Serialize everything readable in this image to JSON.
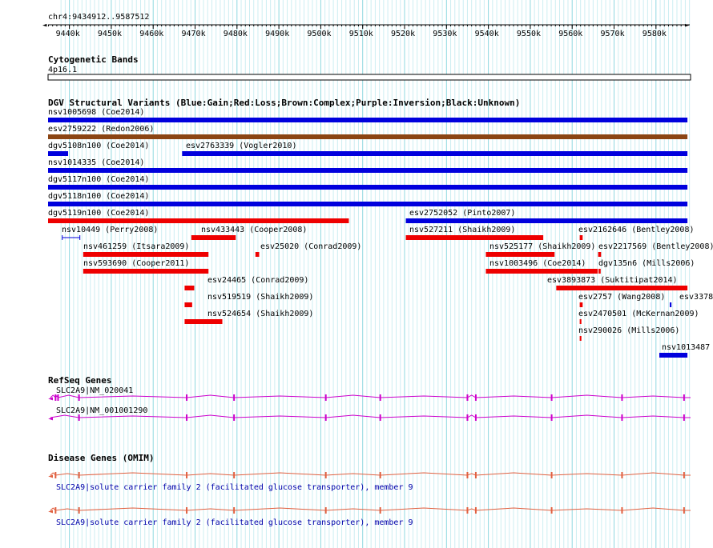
{
  "ruler": {
    "region": "chr4:9434912..9587512",
    "ticks": [
      "9440k",
      "9450k",
      "9460k",
      "9470k",
      "9480k",
      "9490k",
      "9500k",
      "9510k",
      "9520k",
      "9530k",
      "9540k",
      "9550k",
      "9560k",
      "9570k",
      "9580k"
    ],
    "tick_values": [
      9440000,
      9450000,
      9460000,
      9470000,
      9480000,
      9490000,
      9500000,
      9510000,
      9520000,
      9530000,
      9540000,
      9550000,
      9560000,
      9570000,
      9580000
    ]
  },
  "tracks": {
    "cytoband": {
      "title": "Cytogenetic Bands",
      "band": "4p16.1"
    },
    "dgv": {
      "title": "DGV Structural Variants (Blue:Gain;Red:Loss;Brown:Complex;Purple:Inversion;Black:Unknown)",
      "colors": {
        "gain": "#0000dd",
        "loss": "#ee0000",
        "complex": "#8b4513"
      },
      "features": [
        {
          "label": "nsv1005698 (Coe2014)",
          "start": 9434912,
          "end": 9587512,
          "type": "gain"
        },
        {
          "label": "esv2759222 (Redon2006)",
          "start": 9434912,
          "end": 9587512,
          "type": "complex"
        },
        {
          "label": "dgv5108n100 (Coe2014)",
          "start": 9434912,
          "end": 9439700,
          "type": "gain"
        },
        {
          "label": "esv2763339 (Vogler2010)",
          "start": 9466900,
          "end": 9587512,
          "type": "gain"
        },
        {
          "label": "nsv1014335 (Coe2014)",
          "start": 9434912,
          "end": 9587512,
          "type": "gain"
        },
        {
          "label": "dgv5117n100 (Coe2014)",
          "start": 9434912,
          "end": 9587512,
          "type": "gain"
        },
        {
          "label": "dgv5118n100 (Coe2014)",
          "start": 9434912,
          "end": 9587512,
          "type": "gain"
        },
        {
          "label": "dgv5119n100 (Coe2014)",
          "start": 9434912,
          "end": 9506700,
          "type": "loss"
        },
        {
          "label": "esv2752052 (Pinto2007)",
          "start": 9520300,
          "end": 9587512,
          "type": "gain"
        },
        {
          "label": "nsv10449 (Perry2008)",
          "start": 9438300,
          "end": 9442500,
          "type": "gain"
        },
        {
          "label": "nsv433443 (Cooper2008)",
          "start": 9469100,
          "end": 9479700,
          "type": "loss"
        },
        {
          "label": "nsv527211 (Shaikh2009)",
          "start": 9520300,
          "end": 9553100,
          "type": "loss"
        },
        {
          "label": "esv2162646 (Bentley2008)",
          "start": 9561800,
          "end": 9562500,
          "type": "loss"
        },
        {
          "label": "nsv461259 (Itsara2009)",
          "start": 9443300,
          "end": 9473200,
          "type": "loss"
        },
        {
          "label": "esv25020 (Conrad2009)",
          "start": 9484400,
          "end": 9485300,
          "type": "loss"
        },
        {
          "label": "nsv525177 (Shaikh2009)",
          "start": 9539400,
          "end": 9555800,
          "type": "loss"
        },
        {
          "label": "esv2217569 (Bentley2008)",
          "start": 9566200,
          "end": 9566900,
          "type": "loss"
        },
        {
          "label": "nsv593690 (Cooper2011)",
          "start": 9443300,
          "end": 9473200,
          "type": "loss"
        },
        {
          "label": "nsv1003496 (Coe2014)",
          "start": 9539400,
          "end": 9566100,
          "type": "loss"
        },
        {
          "label": "dgv135n6 (Mills2006)",
          "start": 9566300,
          "end": 9566800,
          "type": "loss"
        },
        {
          "label": "esv24465 (Conrad2009)",
          "start": 9467500,
          "end": 9469800,
          "type": "loss"
        },
        {
          "label": "esv3893873 (Suktitipat2014)",
          "start": 9556200,
          "end": 9587512,
          "type": "loss"
        },
        {
          "label": "nsv519519 (Shaikh2009)",
          "start": 9467500,
          "end": 9469300,
          "type": "loss"
        },
        {
          "label": "esv2757 (Wang2008)",
          "start": 9561800,
          "end": 9562500,
          "type": "loss"
        },
        {
          "label": "esv3378",
          "start": 9583300,
          "end": 9583700,
          "type": "gain"
        },
        {
          "label": "nsv524654 (Shaikh2009)",
          "start": 9467500,
          "end": 9476500,
          "type": "loss"
        },
        {
          "label": "esv2470501 (McKernan2009)",
          "start": 9561800,
          "end": 9562200,
          "type": "loss"
        },
        {
          "label": "nsv290026 (Mills2006)",
          "start": 9561800,
          "end": 9562200,
          "type": "loss"
        },
        {
          "label": "nsv1013487",
          "start": 9580800,
          "end": 9587512,
          "type": "gain"
        }
      ]
    },
    "refseq": {
      "title": "RefSeq Genes",
      "color": "#cc00cc",
      "genes": [
        {
          "label": "SLC2A9|NM_020041",
          "start": 9436700,
          "end": 9587512,
          "exons": [
            9436700,
            9437300,
            9442300,
            9468000,
            9479300,
            9501200,
            9514200,
            9535000,
            9537000,
            9555100,
            9571900,
            9586700
          ]
        },
        {
          "label": "SLC2A9|NM_001001290",
          "start": 9436700,
          "end": 9587512,
          "exons": [
            9442300,
            9468000,
            9479300,
            9501200,
            9514200,
            9535000,
            9537000,
            9555100,
            9571900,
            9586700
          ]
        }
      ]
    },
    "omim": {
      "title": "Disease Genes (OMIM)",
      "color": "#e06040",
      "genes": [
        {
          "label": "SLC2A9|solute carrier family 2 (facilitated glucose transporter), member 9",
          "start": 9436700,
          "end": 9587512,
          "exons": [
            9436700,
            9442300,
            9468000,
            9479300,
            9501200,
            9514200,
            9535000,
            9537000,
            9555100,
            9571900,
            9586700
          ]
        },
        {
          "label": "SLC2A9|solute carrier family 2 (facilitated glucose transporter), member 9",
          "start": 9436700,
          "end": 9587512,
          "exons": [
            9436700,
            9442300,
            9468000,
            9479300,
            9501200,
            9514200,
            9535000,
            9537000,
            9555100,
            9571900,
            9586700
          ]
        }
      ]
    }
  }
}
